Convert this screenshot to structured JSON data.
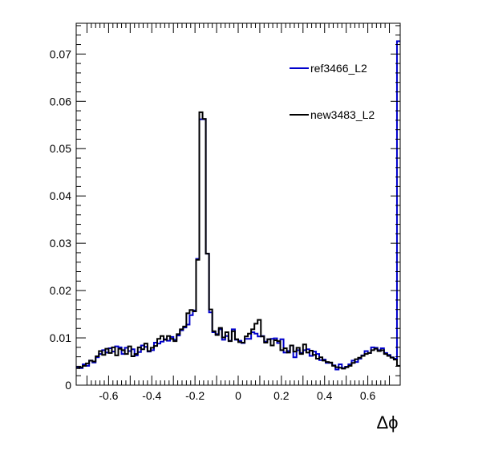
{
  "chart_data": {
    "type": "histogram",
    "xlabel": "Δϕ",
    "ylabel": "",
    "xlim": [
      -0.75,
      0.75
    ],
    "ylim": [
      0,
      0.0765
    ],
    "bin_width": 0.015,
    "x_ticks": [
      -0.6,
      -0.4,
      -0.2,
      0,
      0.2,
      0.4,
      0.6
    ],
    "x_tick_labels": [
      "-0.6",
      "-0.4",
      "-0.2",
      "0",
      "0.2",
      "0.4",
      "0.6"
    ],
    "y_ticks": [
      0,
      0.01,
      0.02,
      0.03,
      0.04,
      0.05,
      0.06,
      0.07
    ],
    "y_tick_labels": [
      "0",
      "0.01",
      "0.02",
      "0.03",
      "0.04",
      "0.05",
      "0.06",
      "0.07"
    ],
    "legend_position": "top-right",
    "series": [
      {
        "name": "ref3466_L2",
        "color": "#0000cc",
        "values": [
          0.0039,
          0.0036,
          0.0044,
          0.0041,
          0.0052,
          0.0048,
          0.0059,
          0.0066,
          0.0074,
          0.0069,
          0.0078,
          0.0071,
          0.0082,
          0.008,
          0.0066,
          0.0079,
          0.0072,
          0.0076,
          0.0063,
          0.007,
          0.0084,
          0.0081,
          0.0071,
          0.0074,
          0.009,
          0.0088,
          0.0092,
          0.0097,
          0.0094,
          0.0102,
          0.0096,
          0.0105,
          0.0116,
          0.0122,
          0.0128,
          0.0148,
          0.0158,
          0.0267,
          0.0562,
          0.0562,
          0.0278,
          0.0154,
          0.0112,
          0.0108,
          0.0118,
          0.0096,
          0.0104,
          0.0094,
          0.0118,
          0.0096,
          0.0094,
          0.0089,
          0.0098,
          0.0098,
          0.0112,
          0.0109,
          0.0103,
          0.0104,
          0.0092,
          0.0097,
          0.0098,
          0.0099,
          0.0089,
          0.0097,
          0.0069,
          0.0072,
          0.0084,
          0.0059,
          0.0074,
          0.0068,
          0.0074,
          0.0076,
          0.0062,
          0.0071,
          0.0066,
          0.0053,
          0.0054,
          0.0047,
          0.0047,
          0.0042,
          0.0033,
          0.0044,
          0.0036,
          0.0039,
          0.0044,
          0.0052,
          0.0049,
          0.0056,
          0.0063,
          0.0072,
          0.0068,
          0.008,
          0.0079,
          0.0074,
          0.0078,
          0.0068,
          0.0064,
          0.0059,
          0.0056,
          0.0727
        ]
      },
      {
        "name": "new3483_L2",
        "color": "#000000",
        "values": [
          0.0036,
          0.0038,
          0.0041,
          0.0046,
          0.0052,
          0.005,
          0.0061,
          0.0072,
          0.0064,
          0.0077,
          0.0068,
          0.008,
          0.0063,
          0.0077,
          0.0074,
          0.0066,
          0.0082,
          0.0061,
          0.0066,
          0.008,
          0.0076,
          0.0088,
          0.0072,
          0.0079,
          0.0083,
          0.0098,
          0.0104,
          0.0096,
          0.0104,
          0.0098,
          0.0093,
          0.0108,
          0.0118,
          0.0124,
          0.0152,
          0.0159,
          0.0156,
          0.0265,
          0.0577,
          0.0563,
          0.0278,
          0.016,
          0.0114,
          0.0106,
          0.0121,
          0.0101,
          0.0112,
          0.0093,
          0.0114,
          0.0097,
          0.0091,
          0.009,
          0.0103,
          0.0109,
          0.0118,
          0.013,
          0.0138,
          0.0103,
          0.009,
          0.0097,
          0.0084,
          0.0095,
          0.0093,
          0.0074,
          0.0078,
          0.0069,
          0.0084,
          0.0071,
          0.0079,
          0.0066,
          0.0086,
          0.0069,
          0.0073,
          0.0064,
          0.0056,
          0.0059,
          0.0052,
          0.0049,
          0.0048,
          0.0041,
          0.0038,
          0.0037,
          0.0035,
          0.0038,
          0.0041,
          0.0047,
          0.0055,
          0.0058,
          0.0062,
          0.0066,
          0.0068,
          0.0074,
          0.0077,
          0.0072,
          0.0074,
          0.0066,
          0.0062,
          0.0058,
          0.0054,
          0.0041
        ]
      }
    ]
  }
}
